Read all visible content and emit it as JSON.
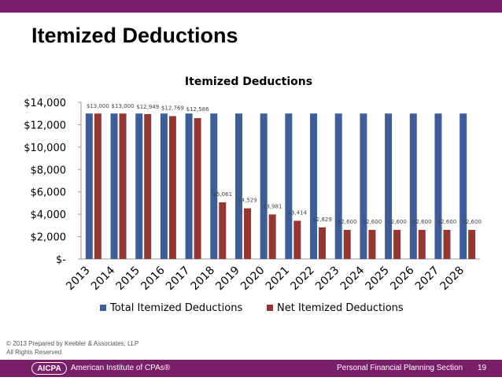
{
  "slide": {
    "title": "Itemized Deductions",
    "copyright_line1": "© 2013 Prepared by Keebler & Associates, LLP",
    "copyright_line2": "All Rights Reserved",
    "logo": "AICPA",
    "org": "American Institute of CPAs®",
    "section": "Personal Financial Planning Section",
    "page": "19"
  },
  "colors": {
    "total": "#3d5e96",
    "net": "#943634",
    "header": "#7a1f6a"
  },
  "chart_data": {
    "type": "bar",
    "title": "Itemized Deductions",
    "categories": [
      "2013",
      "2014",
      "2015",
      "2016",
      "2017",
      "2018",
      "2019",
      "2020",
      "2021",
      "2022",
      "2023",
      "2024",
      "2025",
      "2026",
      "2027",
      "2028"
    ],
    "series": [
      {
        "name": "Total Itemized Deductions",
        "values": [
          13000,
          13000,
          13000,
          13000,
          13000,
          13000,
          13000,
          13000,
          13000,
          13000,
          13000,
          13000,
          13000,
          13000,
          13000,
          13000
        ]
      },
      {
        "name": "Net Itemized Deductions",
        "values": [
          13000,
          13000,
          12949,
          12769,
          12586,
          5061,
          4529,
          3981,
          3414,
          2829,
          2600,
          2600,
          2600,
          2600,
          2600,
          2600
        ]
      }
    ],
    "data_labels": [
      "$13,000",
      "$13,000",
      "$12,949",
      "$12,769",
      "$12,586",
      "$5,061",
      "$4,529",
      "$3,981",
      "$3,414",
      "$2,829",
      "$2,600",
      "$2,600",
      "$2,600",
      "$2,600",
      "$2,600",
      "$2,600"
    ],
    "yticks": [
      0,
      2000,
      4000,
      6000,
      8000,
      10000,
      12000,
      14000
    ],
    "ytick_labels": [
      "$-",
      "$2,000",
      "$4,000",
      "$6,000",
      "$8,000",
      "$10,000",
      "$12,000",
      "$14,000"
    ],
    "ylim": [
      0,
      14000
    ],
    "legend_position": "bottom",
    "grid": false
  }
}
